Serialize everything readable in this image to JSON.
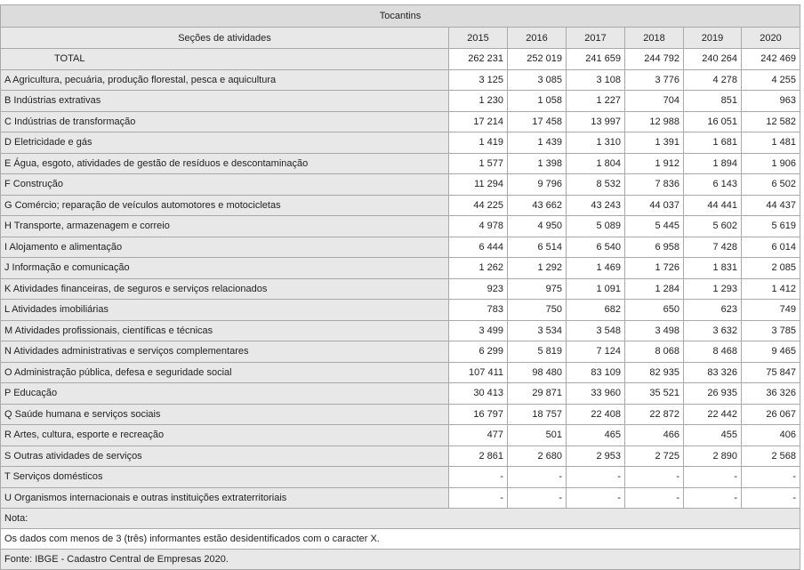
{
  "table": {
    "title": "Tocantins",
    "section_header": "Seções de atividades",
    "years": [
      "2015",
      "2016",
      "2017",
      "2018",
      "2019",
      "2020"
    ],
    "rows": [
      {
        "label": "TOTAL",
        "values": [
          "262 231",
          "252 019",
          "241 659",
          "244 792",
          "240 264",
          "242 469"
        ]
      },
      {
        "label": "A Agricultura, pecuária, produção florestal, pesca e aquicultura",
        "values": [
          "3 125",
          "3 085",
          "3 108",
          "3 776",
          "4 278",
          "4 255"
        ]
      },
      {
        "label": "B Indústrias extrativas",
        "values": [
          "1 230",
          "1 058",
          "1 227",
          "704",
          "851",
          "963"
        ]
      },
      {
        "label": "C Indústrias de transformação",
        "values": [
          "17 214",
          "17 458",
          "13 997",
          "12 988",
          "16 051",
          "12 582"
        ]
      },
      {
        "label": "D Eletricidade e gás",
        "values": [
          "1 419",
          "1 439",
          "1 310",
          "1 391",
          "1 681",
          "1 481"
        ]
      },
      {
        "label": "E Água, esgoto, atividades de gestão de resíduos e descontaminação",
        "values": [
          "1 577",
          "1 398",
          "1 804",
          "1 912",
          "1 894",
          "1 906"
        ]
      },
      {
        "label": "F Construção",
        "values": [
          "11 294",
          "9 796",
          "8 532",
          "7 836",
          "6 143",
          "6 502"
        ]
      },
      {
        "label": "G Comércio; reparação de veículos automotores e motocicletas",
        "values": [
          "44 225",
          "43 662",
          "43 243",
          "44 037",
          "44 441",
          "44 437"
        ]
      },
      {
        "label": "H Transporte, armazenagem e correio",
        "values": [
          "4 978",
          "4 950",
          "5 089",
          "5 445",
          "5 602",
          "5 619"
        ]
      },
      {
        "label": "I Alojamento e alimentação",
        "values": [
          "6 444",
          "6 514",
          "6 540",
          "6 958",
          "7 428",
          "6 014"
        ]
      },
      {
        "label": "J Informação e comunicação",
        "values": [
          "1 262",
          "1 292",
          "1 469",
          "1 726",
          "1 831",
          "2 085"
        ]
      },
      {
        "label": "K Atividades financeiras, de seguros e serviços relacionados",
        "values": [
          "923",
          "975",
          "1 091",
          "1 284",
          "1 293",
          "1 412"
        ]
      },
      {
        "label": "L Atividades imobiliárias",
        "values": [
          "783",
          "750",
          "682",
          "650",
          "623",
          "749"
        ]
      },
      {
        "label": "M Atividades profissionais, científicas e técnicas",
        "values": [
          "3 499",
          "3 534",
          "3 548",
          "3 498",
          "3 632",
          "3 785"
        ]
      },
      {
        "label": "N Atividades administrativas e serviços complementares",
        "values": [
          "6 299",
          "5 819",
          "7 124",
          "8 068",
          "8 468",
          "9 465"
        ]
      },
      {
        "label": "O Administração pública, defesa e seguridade social",
        "values": [
          "107 411",
          "98 480",
          "83 109",
          "82 935",
          "83 326",
          "75 847"
        ]
      },
      {
        "label": "P Educação",
        "values": [
          "30 413",
          "29 871",
          "33 960",
          "35 521",
          "26 935",
          "36 326"
        ]
      },
      {
        "label": "Q Saúde humana e serviços sociais",
        "values": [
          "16 797",
          "18 757",
          "22 408",
          "22 872",
          "22 442",
          "26 067"
        ]
      },
      {
        "label": "R Artes, cultura, esporte e recreação",
        "values": [
          "477",
          "501",
          "465",
          "466",
          "455",
          "406"
        ]
      },
      {
        "label": "S Outras atividades de serviços",
        "values": [
          "2 861",
          "2 680",
          "2 953",
          "2 725",
          "2 890",
          "2 568"
        ]
      },
      {
        "label": "T Serviços domésticos",
        "values": [
          "-",
          "-",
          "-",
          "-",
          "-",
          "-"
        ]
      },
      {
        "label": "U Organismos internacionais e outras instituições extraterritoriais",
        "values": [
          "-",
          "-",
          "-",
          "-",
          "-",
          "-"
        ]
      }
    ],
    "notes": {
      "label": "Nota:",
      "text": "Os dados com menos de 3 (três) informantes estão desidentificados com o caracter X.",
      "source": "Fonte: IBGE - Cadastro Central de Empresas 2020."
    }
  }
}
